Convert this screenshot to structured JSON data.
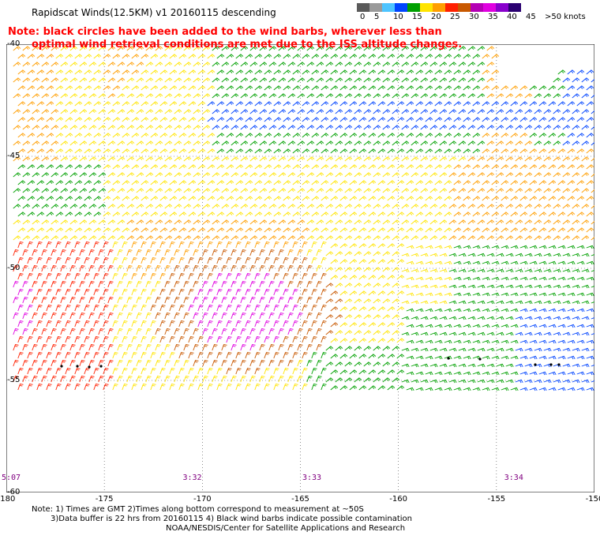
{
  "title": "Rapidscat Winds(12.5KM) v1 20160115 descending",
  "note": {
    "line1": "Note: black circles have been added to the wind barbs, wherever less than",
    "line2": "optimal wind retrieval conditions are met due to the ISS altitude changes."
  },
  "legend": {
    "labels": [
      "0",
      "5",
      "10",
      "15",
      "20",
      "25",
      "30",
      "35",
      "40",
      "45",
      ">50 knots"
    ],
    "colors": [
      "#5a5a5a",
      "#9a9a9a",
      "#4ec4ff",
      "#0044ff",
      "#00a000",
      "#ffe400",
      "#ff9e00",
      "#ff2000",
      "#c85800",
      "#b400b4",
      "#e000e0",
      "#8800cc",
      "#2a0070"
    ]
  },
  "map": {
    "x_ticks": [
      "-180",
      "-175",
      "-170",
      "-165",
      "-160",
      "-155",
      "-150"
    ],
    "y_ticks": [
      "-40",
      "-45",
      "-50",
      "-55",
      "-60"
    ],
    "lon_range": [
      -180,
      -150
    ],
    "lat_range": [
      -60,
      -40
    ],
    "times": [
      {
        "label": "5:07",
        "lon": -180
      },
      {
        "label": "3:32",
        "lon": -171
      },
      {
        "label": "3:33",
        "lon": -164.9
      },
      {
        "label": "3:34",
        "lon": -154.6
      }
    ]
  },
  "footer": {
    "line1": "Note: 1) Times are GMT 2)Times along bottom correspond to measurement at ~50S",
    "line2": "3)Data buffer is 22 hrs from 20160115 4) Black wind barbs indicate possible contamination",
    "line3": "NOAA/NESDIS/Center for Satellite Applications and Research"
  }
}
